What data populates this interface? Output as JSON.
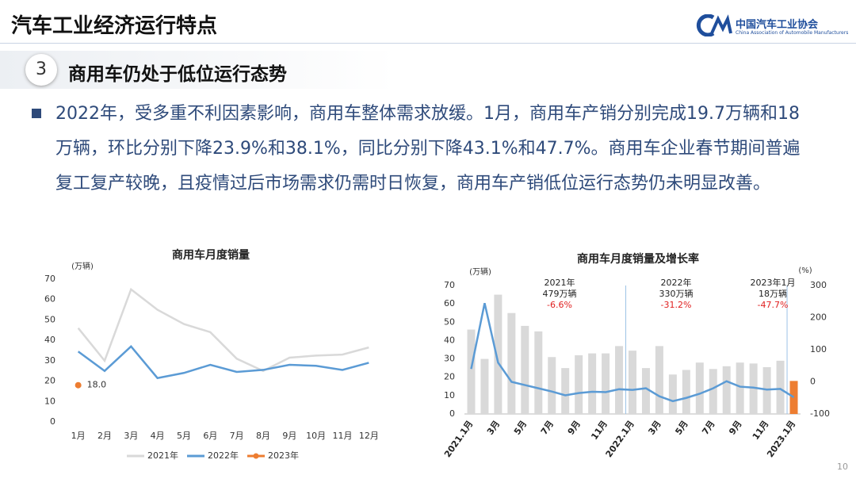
{
  "header": {
    "title": "汽车工业经济运行特点",
    "org_name": "中国汽车工业协会",
    "org_name_en": "China Association of Automobile Manufacturers"
  },
  "section": {
    "number": "3",
    "title": "商用车仍处于低位运行态势"
  },
  "paragraph": "2022年，受多重不利因素影响，商用车整体需求放缓。1月，商用车产销分别完成19.7万辆和18万辆，环比分别下降23.9%和38.1%，同比分别下降43.1%和47.7%。商用车企业春节期间普遍复工复产较晚，且疫情过后市场需求仍需时日恢复，商用车产销低位运行态势仍未明显改善。",
  "page_number": "10",
  "chart_data": [
    {
      "type": "line",
      "title": "商用车月度销量",
      "y_unit": "(万辆)",
      "categories": [
        "1月",
        "2月",
        "3月",
        "4月",
        "5月",
        "6月",
        "7月",
        "8月",
        "9月",
        "10月",
        "11月",
        "12月"
      ],
      "series": [
        {
          "name": "2021年",
          "color": "#d9d9d9",
          "values": [
            46,
            30,
            65,
            55,
            48,
            44,
            31,
            25,
            31.5,
            32.5,
            33,
            36.5
          ]
        },
        {
          "name": "2022年",
          "color": "#5b9bd5",
          "values": [
            34.5,
            25,
            37,
            21.5,
            24,
            28,
            24.5,
            25.5,
            28,
            27.5,
            25.5,
            29
          ]
        },
        {
          "name": "2023年",
          "color": "#ed7d31",
          "values": [
            18,
            null,
            null,
            null,
            null,
            null,
            null,
            null,
            null,
            null,
            null,
            null
          ],
          "value_labels": [
            "18.0",
            null,
            null,
            null,
            null,
            null,
            null,
            null,
            null,
            null,
            null,
            null
          ]
        }
      ],
      "ylim": [
        0,
        70
      ],
      "yticks": [
        0,
        10,
        20,
        30,
        40,
        50,
        60,
        70
      ],
      "grid": false,
      "legend": "bottom"
    },
    {
      "type": "combo",
      "title": "商用车月度销量及增长率",
      "y_unit": "(万辆)",
      "y2_unit": "(%)",
      "categories": [
        "2021.1月",
        null,
        "3月",
        null,
        "5月",
        null,
        "7月",
        null,
        "9月",
        null,
        "11月",
        null,
        "2022.1月",
        null,
        "3月",
        null,
        "5月",
        null,
        "7月",
        null,
        "9月",
        null,
        "11月",
        null,
        "2023.1月"
      ],
      "series": [
        {
          "type": "bar",
          "color": "#d9d9d9",
          "colors": [
            "#d9d9d9",
            "#d9d9d9",
            "#d9d9d9",
            "#d9d9d9",
            "#d9d9d9",
            "#d9d9d9",
            "#d9d9d9",
            "#d9d9d9",
            "#d9d9d9",
            "#d9d9d9",
            "#d9d9d9",
            "#d9d9d9",
            "#d9d9d9",
            "#d9d9d9",
            "#d9d9d9",
            "#d9d9d9",
            "#d9d9d9",
            "#d9d9d9",
            "#d9d9d9",
            "#d9d9d9",
            "#d9d9d9",
            "#d9d9d9",
            "#d9d9d9",
            "#d9d9d9",
            "#ed7d31"
          ],
          "values": [
            46,
            30,
            65,
            55,
            48,
            45,
            31,
            25,
            32,
            33,
            33,
            37,
            34.5,
            25,
            37,
            21.5,
            24,
            28,
            24.5,
            26,
            28,
            27.5,
            25.5,
            29,
            18
          ]
        },
        {
          "type": "line",
          "axis": "y2",
          "color": "#5b9bd5",
          "values": [
            40,
            245,
            60,
            0,
            -10,
            -20,
            -30,
            -42,
            -35,
            -31,
            -32,
            -23,
            -25,
            -20,
            -45,
            -60,
            -50,
            -37,
            -20,
            2,
            -15,
            -18,
            -24,
            -22,
            -48
          ]
        }
      ],
      "annotations": [
        {
          "title": "2021年",
          "total": "479万辆",
          "change": "-6.6%"
        },
        {
          "title": "2022年",
          "total": "330万辆",
          "change": "-31.2%"
        },
        {
          "title": "2023年1月",
          "total": "18万辆",
          "change": "-47.7%"
        }
      ],
      "ylim": [
        0,
        70
      ],
      "yticks": [
        0,
        10,
        20,
        30,
        40,
        50,
        60,
        70
      ],
      "y2lim": [
        -100,
        300
      ],
      "y2ticks": [
        -100,
        0,
        100,
        200,
        300
      ],
      "grid": false
    }
  ]
}
